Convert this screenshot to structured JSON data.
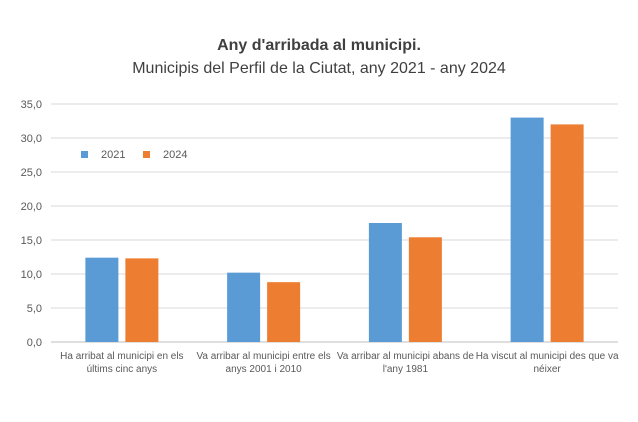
{
  "chart_data": {
    "type": "bar",
    "title": "Any d'arribada al municipi.",
    "subtitle": "Municipis del Perfil de la Ciutat, any 2021 - any 2024",
    "categories": [
      [
        "Ha arribat al municipi en els",
        "últims cinc anys"
      ],
      [
        "Va arribar al municipi entre els",
        "anys 2001 i 2010"
      ],
      [
        "Va arribar al municipi abans de",
        "l'any 1981"
      ],
      [
        "Ha viscut al municipi des que va",
        "néixer"
      ]
    ],
    "series": [
      {
        "name": "2021",
        "color": "#5B9BD5",
        "values": [
          12.4,
          10.2,
          17.5,
          33.0
        ]
      },
      {
        "name": "2024",
        "color": "#ED7D31",
        "values": [
          12.3,
          8.8,
          15.4,
          32.0
        ]
      }
    ],
    "ylim": [
      0,
      35
    ],
    "yticks": [
      "0,0",
      "5,0",
      "10,0",
      "15,0",
      "20,0",
      "25,0",
      "30,0",
      "35,0"
    ],
    "grid": true,
    "legend": "top-left"
  }
}
